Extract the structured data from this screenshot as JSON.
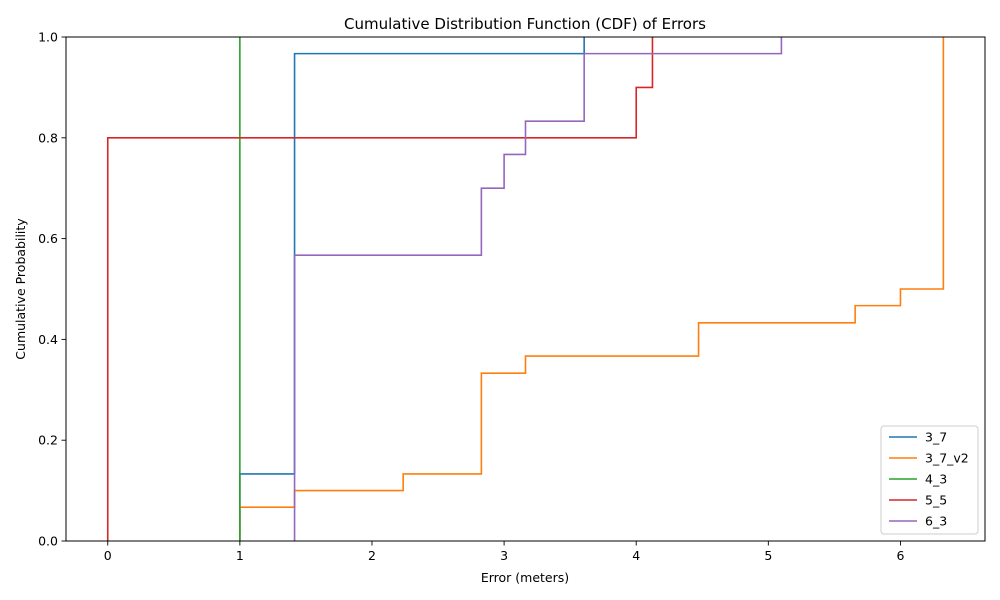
{
  "chart_data": {
    "type": "line",
    "step": "post",
    "title": "Cumulative Distribution Function (CDF) of Errors",
    "xlabel": "Error (meters)",
    "ylabel": "Cumulative Probability",
    "xlim": [
      -0.316,
      6.64
    ],
    "ylim": [
      0,
      1
    ],
    "xticks": [
      0,
      1,
      2,
      3,
      4,
      5,
      6
    ],
    "yticks": [
      0.0,
      0.2,
      0.4,
      0.6,
      0.8,
      1.0
    ],
    "grid": false,
    "legend_position": "lower-right",
    "series": [
      {
        "name": "3_7",
        "color": "#1f77b4",
        "points": [
          [
            1.0,
            0.0
          ],
          [
            1.0,
            0.133
          ],
          [
            1.414,
            0.133
          ],
          [
            1.414,
            0.967
          ],
          [
            3.606,
            0.967
          ],
          [
            3.606,
            1.0
          ]
        ]
      },
      {
        "name": "3_7_v2",
        "color": "#ff7f0e",
        "points": [
          [
            1.0,
            0.0
          ],
          [
            1.0,
            0.067
          ],
          [
            1.414,
            0.067
          ],
          [
            1.414,
            0.1
          ],
          [
            2.236,
            0.1
          ],
          [
            2.236,
            0.133
          ],
          [
            2.828,
            0.133
          ],
          [
            2.828,
            0.333
          ],
          [
            3.162,
            0.333
          ],
          [
            3.162,
            0.367
          ],
          [
            4.472,
            0.367
          ],
          [
            4.472,
            0.433
          ],
          [
            5.657,
            0.433
          ],
          [
            5.657,
            0.467
          ],
          [
            6.0,
            0.467
          ],
          [
            6.0,
            0.5
          ],
          [
            6.325,
            0.5
          ],
          [
            6.325,
            1.0
          ]
        ]
      },
      {
        "name": "4_3",
        "color": "#2ca02c",
        "points": [
          [
            1.0,
            0.0
          ],
          [
            1.0,
            1.0
          ]
        ]
      },
      {
        "name": "5_5",
        "color": "#d62728",
        "points": [
          [
            0.0,
            0.0
          ],
          [
            0.0,
            0.8
          ],
          [
            4.0,
            0.8
          ],
          [
            4.0,
            0.9
          ],
          [
            4.123,
            0.9
          ],
          [
            4.123,
            1.0
          ]
        ]
      },
      {
        "name": "6_3",
        "color": "#9467bd",
        "points": [
          [
            1.414,
            0.0
          ],
          [
            1.414,
            0.567
          ],
          [
            2.828,
            0.567
          ],
          [
            2.828,
            0.7
          ],
          [
            3.0,
            0.7
          ],
          [
            3.0,
            0.767
          ],
          [
            3.162,
            0.767
          ],
          [
            3.162,
            0.833
          ],
          [
            3.606,
            0.833
          ],
          [
            3.606,
            0.967
          ],
          [
            5.099,
            0.967
          ],
          [
            5.099,
            1.0
          ]
        ]
      }
    ]
  }
}
